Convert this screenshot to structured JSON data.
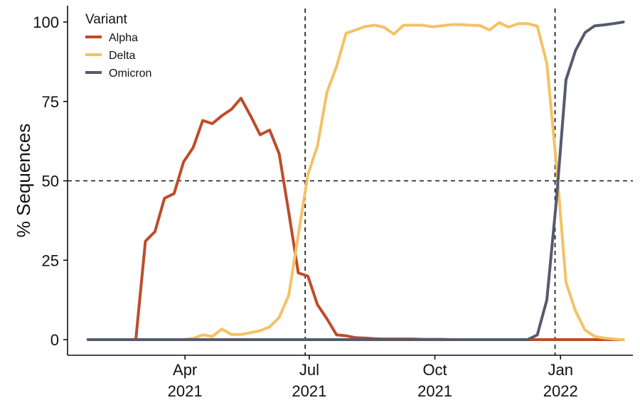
{
  "chart_data": {
    "type": "line",
    "ylabel": "% Sequences",
    "ylim": [
      0,
      100
    ],
    "yticks": [
      0,
      25,
      50,
      75,
      100
    ],
    "x_range": [
      "2021-01-05",
      "2022-02-23"
    ],
    "xticks": [
      {
        "date": "2021-04-01",
        "line1": "Apr",
        "line2": "2021"
      },
      {
        "date": "2021-07-01",
        "line1": "Jul",
        "line2": "2021"
      },
      {
        "date": "2021-10-01",
        "line1": "Oct",
        "line2": "2021"
      },
      {
        "date": "2022-01-01",
        "line1": "Jan",
        "line2": "2022"
      }
    ],
    "reference_lines": {
      "horizontal": [
        50
      ],
      "vertical": [
        "2021-06-28",
        "2021-12-28"
      ]
    },
    "grid": false,
    "legend": {
      "title": "Variant",
      "position": "top-left"
    },
    "x": [
      "2021-01-20",
      "2021-01-27",
      "2021-02-03",
      "2021-02-10",
      "2021-02-17",
      "2021-02-24",
      "2021-03-03",
      "2021-03-10",
      "2021-03-17",
      "2021-03-24",
      "2021-03-31",
      "2021-04-07",
      "2021-04-14",
      "2021-04-21",
      "2021-04-28",
      "2021-05-05",
      "2021-05-12",
      "2021-05-19",
      "2021-05-26",
      "2021-06-02",
      "2021-06-09",
      "2021-06-16",
      "2021-06-23",
      "2021-06-30",
      "2021-07-07",
      "2021-07-14",
      "2021-07-21",
      "2021-07-28",
      "2021-08-04",
      "2021-08-11",
      "2021-08-18",
      "2021-08-25",
      "2021-09-01",
      "2021-09-08",
      "2021-09-15",
      "2021-09-22",
      "2021-09-29",
      "2021-10-06",
      "2021-10-13",
      "2021-10-20",
      "2021-10-27",
      "2021-11-03",
      "2021-11-10",
      "2021-11-17",
      "2021-11-24",
      "2021-12-01",
      "2021-12-08",
      "2021-12-15",
      "2021-12-22",
      "2021-12-29",
      "2022-01-05",
      "2022-01-12",
      "2022-01-19",
      "2022-01-26",
      "2022-02-02",
      "2022-02-09",
      "2022-02-16"
    ],
    "series": [
      {
        "name": "Alpha",
        "color": "#bf4b2a",
        "values": [
          0,
          0,
          0,
          0,
          0,
          0,
          31,
          34,
          44.5,
          46,
          56,
          60.5,
          69,
          68,
          70.5,
          72.5,
          76,
          70.5,
          64.5,
          66,
          58.5,
          40,
          21,
          20,
          11,
          6.5,
          1.5,
          1.2,
          0.6,
          0.5,
          0.3,
          0.2,
          0.2,
          0.2,
          0.2,
          0.1,
          0.1,
          0.1,
          0,
          0,
          0,
          0,
          0,
          0,
          0,
          0,
          0,
          0,
          0,
          0,
          0,
          0,
          0,
          0,
          0,
          0,
          0
        ]
      },
      {
        "name": "Delta",
        "color": "#f4c265",
        "values": [
          0,
          0,
          0,
          0,
          0,
          0,
          0,
          0,
          0,
          0,
          0,
          0.4,
          1.5,
          1,
          3.3,
          1.6,
          1.6,
          2.2,
          2.8,
          4,
          7,
          14,
          33,
          52,
          61,
          78,
          86,
          96.5,
          97.5,
          98.6,
          99,
          98.3,
          96.2,
          99,
          99,
          99,
          98.5,
          98.8,
          99.2,
          99.2,
          99,
          98.9,
          97.5,
          99.8,
          98.4,
          99.5,
          99.5,
          98.7,
          87,
          55,
          18,
          9,
          3,
          1,
          0.5,
          0.2,
          0
        ]
      },
      {
        "name": "Omicron",
        "color": "#555b6e",
        "values": [
          0,
          0,
          0,
          0,
          0,
          0,
          0,
          0,
          0,
          0,
          0,
          0,
          0,
          0,
          0,
          0,
          0,
          0,
          0,
          0,
          0,
          0,
          0,
          0,
          0,
          0,
          0,
          0,
          0,
          0,
          0,
          0,
          0,
          0,
          0,
          0,
          0,
          0,
          0,
          0,
          0,
          0,
          0,
          0,
          0,
          0,
          0,
          1.5,
          12.5,
          44,
          81.8,
          91,
          96.7,
          98.8,
          99.1,
          99.5,
          100
        ]
      }
    ]
  }
}
